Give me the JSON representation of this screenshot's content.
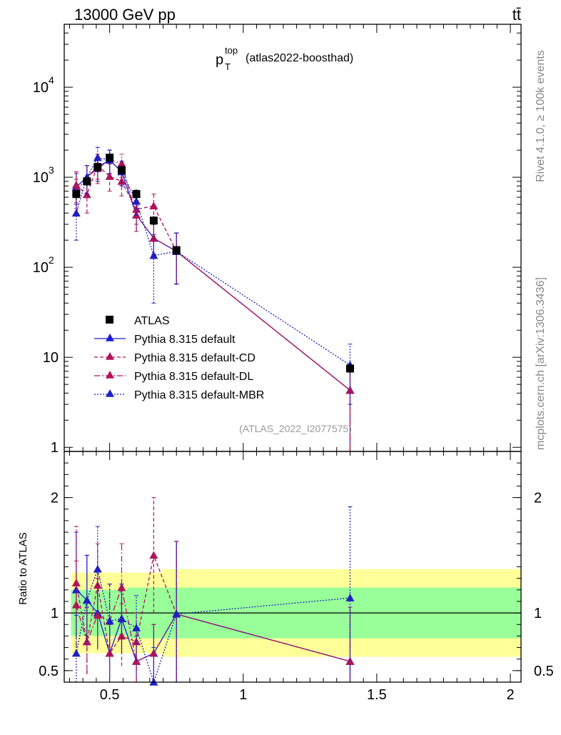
{
  "header": {
    "left": "13000 GeV pp",
    "right": "tt̄"
  },
  "side": {
    "upper": "Rivet 4.1.0, ≥ 100k events",
    "lower": "mcplots.cern.ch [arXiv:1306.3436]"
  },
  "colors": {
    "data": "#000000",
    "default": "#1c1cd6",
    "cd": "#b0145a",
    "dl": "#b0145a",
    "mbr": "#2020c0",
    "band_inner": "#99ff99",
    "band_outer": "#ffff99"
  },
  "chart_data": [
    {
      "type": "scatter",
      "role": "main",
      "title_main": "p",
      "title_sup": "top",
      "title_sub": "T",
      "title_rest": "(atlas2022-boosthad)",
      "watermark": "(ATLAS_2022_I2077575)",
      "yscale": "log",
      "xlim": [
        0.33,
        2.04
      ],
      "ylim": [
        0.9,
        50000
      ],
      "y_ticks": [
        {
          "value": 1,
          "label": "1"
        },
        {
          "value": 10,
          "label": "10"
        },
        {
          "value": 100,
          "base": "10",
          "exp": "2"
        },
        {
          "value": 1000,
          "base": "10",
          "exp": "3"
        },
        {
          "value": 10000,
          "base": "10",
          "exp": "4"
        }
      ],
      "legend": [
        {
          "key": "data",
          "label": "ATLAS"
        },
        {
          "key": "default",
          "label": "Pythia 8.315 default"
        },
        {
          "key": "cd",
          "label": "Pythia 8.315 default-CD"
        },
        {
          "key": "dl",
          "label": "Pythia 8.315 default-DL"
        },
        {
          "key": "mbr",
          "label": "Pythia 8.315 default-MBR"
        }
      ],
      "data_points": {
        "x": [
          0.375,
          0.415,
          0.455,
          0.5,
          0.545,
          0.6,
          0.665,
          0.75,
          1.4
        ],
        "xerr": [
          0.02,
          0.02,
          0.02,
          0.025,
          0.02,
          0.035,
          0.03,
          0.055,
          0.6
        ],
        "y": [
          650,
          900,
          1300,
          1650,
          1200,
          650,
          330,
          155,
          7.5
        ],
        "yerr_rel": [
          0.12,
          0.12,
          0.12,
          0.12,
          0.12,
          0.12,
          0.12,
          0.12,
          0.12
        ],
        "band_inner_rel": [
          0.2,
          0.2,
          0.2,
          0.2,
          0.2,
          0.22,
          0.22,
          0.22,
          0.22
        ],
        "band_outer_rel": [
          0.35,
          0.35,
          0.35,
          0.35,
          0.35,
          0.35,
          0.35,
          0.38,
          0.38
        ]
      },
      "series": [
        {
          "key": "default",
          "dash": "",
          "x": [
            0.375,
            0.415,
            0.455,
            0.5,
            0.545,
            0.6,
            0.665,
            0.75,
            1.4
          ],
          "y": [
            780,
            1000,
            1300,
            1550,
            1150,
            380,
            210,
            150,
            4.3
          ],
          "lo": [
            500,
            650,
            900,
            1100,
            800,
            250,
            140,
            65,
            0.6
          ],
          "hi": [
            1100,
            1350,
            1700,
            2000,
            1500,
            550,
            300,
            240,
            8
          ]
        },
        {
          "key": "cd",
          "dash": "5,3",
          "x": [
            0.375,
            0.415,
            0.455,
            0.5,
            0.545,
            0.6,
            0.665,
            0.75,
            1.4
          ],
          "y": [
            820,
            640,
            1350,
            1020,
            900,
            440,
            480,
            150,
            4.3
          ],
          "lo": [
            520,
            400,
            950,
            700,
            620,
            300,
            330,
            65,
            0.6
          ],
          "hi": [
            1150,
            900,
            1800,
            1400,
            1250,
            600,
            650,
            240,
            8
          ]
        },
        {
          "key": "dl",
          "dash": "8,3,2,3",
          "x": [
            0.375,
            0.415,
            0.455,
            0.5,
            0.545,
            0.6,
            0.665,
            0.75,
            1.4
          ],
          "y": [
            690,
            1000,
            1250,
            1550,
            1420,
            380,
            210,
            150,
            4.3
          ],
          "lo": [
            450,
            650,
            850,
            1100,
            1000,
            250,
            140,
            65,
            0.6
          ],
          "hi": [
            950,
            1350,
            1650,
            2000,
            1800,
            550,
            300,
            240,
            8
          ]
        },
        {
          "key": "mbr",
          "dash": "2,2",
          "x": [
            0.375,
            0.415,
            0.455,
            0.5,
            0.545,
            0.6,
            0.665,
            0.75,
            1.4
          ],
          "y": [
            400,
            1000,
            1650,
            1550,
            1150,
            540,
            135,
            150,
            8.2
          ],
          "lo": [
            200,
            650,
            1150,
            1100,
            800,
            380,
            40,
            65,
            3
          ],
          "hi": [
            620,
            1350,
            2150,
            2000,
            1500,
            720,
            230,
            240,
            14
          ]
        }
      ]
    },
    {
      "type": "scatter",
      "role": "ratio",
      "ylabel": "Ratio to ATLAS",
      "xlabel": "",
      "xlim": [
        0.33,
        2.04
      ],
      "ylim": [
        0.4,
        2.4
      ],
      "y_ticks": [
        {
          "value": 0.5,
          "label": "0.5"
        },
        {
          "value": 1,
          "label": "1"
        },
        {
          "value": 2,
          "label": "2"
        }
      ],
      "x_ticks": [
        {
          "value": 0.5,
          "label": "0.5"
        },
        {
          "value": 1,
          "label": "1"
        },
        {
          "value": 1.5,
          "label": "1.5"
        },
        {
          "value": 2,
          "label": "2"
        }
      ],
      "series": [
        {
          "key": "default",
          "dash": "",
          "x": [
            0.375,
            0.415,
            0.455,
            0.5,
            0.545,
            0.6,
            0.665,
            0.75,
            1.4
          ],
          "y": [
            1.2,
            1.11,
            1.0,
            0.65,
            0.95,
            0.58,
            0.65,
            0.99,
            0.58
          ],
          "lo": [
            0.77,
            0.72,
            0.7,
            0.44,
            0.66,
            0.39,
            0.43,
            0.4,
            0.1
          ],
          "hi": [
            1.7,
            1.5,
            1.3,
            0.9,
            1.25,
            0.8,
            0.9,
            1.62,
            1.05
          ]
        },
        {
          "key": "cd",
          "dash": "5,3",
          "x": [
            0.375,
            0.415,
            0.455,
            0.5,
            0.545,
            0.6,
            0.665,
            0.75,
            1.4
          ],
          "y": [
            1.26,
            0.75,
            1.24,
            0.65,
            0.8,
            0.75,
            1.5,
            0.99,
            0.58
          ],
          "lo": [
            0.8,
            0.47,
            0.88,
            0.44,
            0.54,
            0.5,
            1.0,
            0.4,
            0.1
          ],
          "hi": [
            1.75,
            1.05,
            1.6,
            0.9,
            1.08,
            1.0,
            2.0,
            1.62,
            1.05
          ]
        },
        {
          "key": "dl",
          "dash": "8,3,2,3",
          "x": [
            0.375,
            0.415,
            0.455,
            0.5,
            0.545,
            0.6,
            0.665,
            0.75,
            1.4
          ],
          "y": [
            1.07,
            0.75,
            0.98,
            0.93,
            1.22,
            0.58,
            0.65,
            0.99,
            0.58
          ],
          "lo": [
            0.7,
            0.47,
            0.68,
            0.63,
            0.85,
            0.39,
            0.43,
            0.4,
            0.1
          ],
          "hi": [
            1.45,
            1.05,
            1.3,
            1.25,
            1.6,
            0.8,
            0.9,
            1.62,
            1.05
          ]
        },
        {
          "key": "mbr",
          "dash": "2,2",
          "x": [
            0.375,
            0.415,
            0.455,
            0.5,
            0.545,
            0.6,
            0.665,
            0.75,
            1.4
          ],
          "y": [
            0.65,
            1.11,
            1.38,
            0.93,
            0.95,
            0.87,
            0.36,
            0.99,
            1.13
          ],
          "lo": [
            0.32,
            0.72,
            0.99,
            0.63,
            0.66,
            0.58,
            0.1,
            0.4,
            0.4
          ],
          "hi": [
            0.98,
            1.5,
            1.75,
            1.25,
            1.25,
            1.15,
            0.7,
            1.62,
            1.92
          ]
        }
      ]
    }
  ]
}
